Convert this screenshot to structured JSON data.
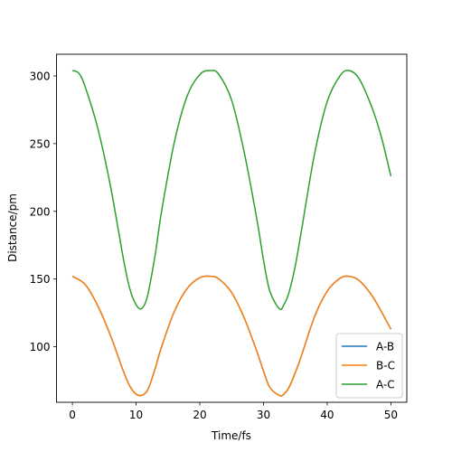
{
  "chart_data": {
    "type": "line",
    "xlabel": "Time/fs",
    "ylabel": "Distance/pm",
    "xlim": [
      -2.5,
      52.5
    ],
    "ylim": [
      59,
      316
    ],
    "xticks": [
      0,
      10,
      20,
      30,
      40,
      50
    ],
    "yticks": [
      100,
      150,
      200,
      250,
      300
    ],
    "grid": false,
    "legend_position": "bottom-right",
    "series": [
      {
        "name": "A-B",
        "color": "#1f77b4",
        "x": [
          0,
          2,
          4,
          6,
          8,
          9,
          10,
          10.8,
          11.5,
          12,
          13,
          14,
          16,
          18,
          20,
          21.7,
          23,
          25,
          27,
          29,
          30,
          31,
          32.5,
          33.2,
          34,
          35,
          36,
          38,
          40,
          42,
          43.4,
          45,
          47,
          48.5,
          50
        ],
        "y": [
          152,
          146,
          130,
          108,
          82,
          71,
          65,
          64,
          66,
          70,
          84,
          100,
          126,
          143,
          151,
          152,
          150,
          140,
          121,
          96,
          82,
          70,
          64,
          65,
          70,
          81,
          94,
          122,
          141,
          150.5,
          152,
          149,
          138,
          126,
          113
        ]
      },
      {
        "name": "B-C",
        "color": "#ff7f0e",
        "x": [
          0,
          2,
          4,
          6,
          8,
          9,
          10,
          10.8,
          11.5,
          12,
          13,
          14,
          16,
          18,
          20,
          21.7,
          23,
          25,
          27,
          29,
          30,
          31,
          32.5,
          33.2,
          34,
          35,
          36,
          38,
          40,
          42,
          43.4,
          45,
          47,
          48.5,
          50
        ],
        "y": [
          152,
          146,
          130,
          108,
          82,
          71,
          65,
          64,
          66,
          70,
          84,
          100,
          126,
          143,
          151,
          152,
          150,
          140,
          121,
          96,
          82,
          70,
          64,
          65,
          70,
          81,
          94,
          122,
          141,
          150.5,
          152,
          149,
          138,
          126,
          113
        ]
      },
      {
        "name": "A-C",
        "color": "#2ca02c",
        "x": [
          0,
          1,
          2,
          4,
          6,
          8,
          9,
          10,
          10.8,
          11.5,
          12,
          13,
          14,
          16,
          18,
          20,
          21.7,
          23,
          25,
          27,
          29,
          30,
          31,
          32.5,
          33.2,
          34,
          35,
          36,
          38,
          40,
          42,
          43.4,
          45,
          47,
          48.5,
          50
        ],
        "y": [
          304,
          302,
          292,
          261,
          218,
          165,
          143,
          131,
          128,
          133,
          142,
          168,
          200,
          251,
          285,
          301,
          304,
          301,
          282,
          243,
          193,
          164,
          141,
          128,
          131,
          140,
          160,
          187,
          242,
          281,
          300,
          304,
          298,
          277,
          255,
          226
        ]
      }
    ]
  }
}
